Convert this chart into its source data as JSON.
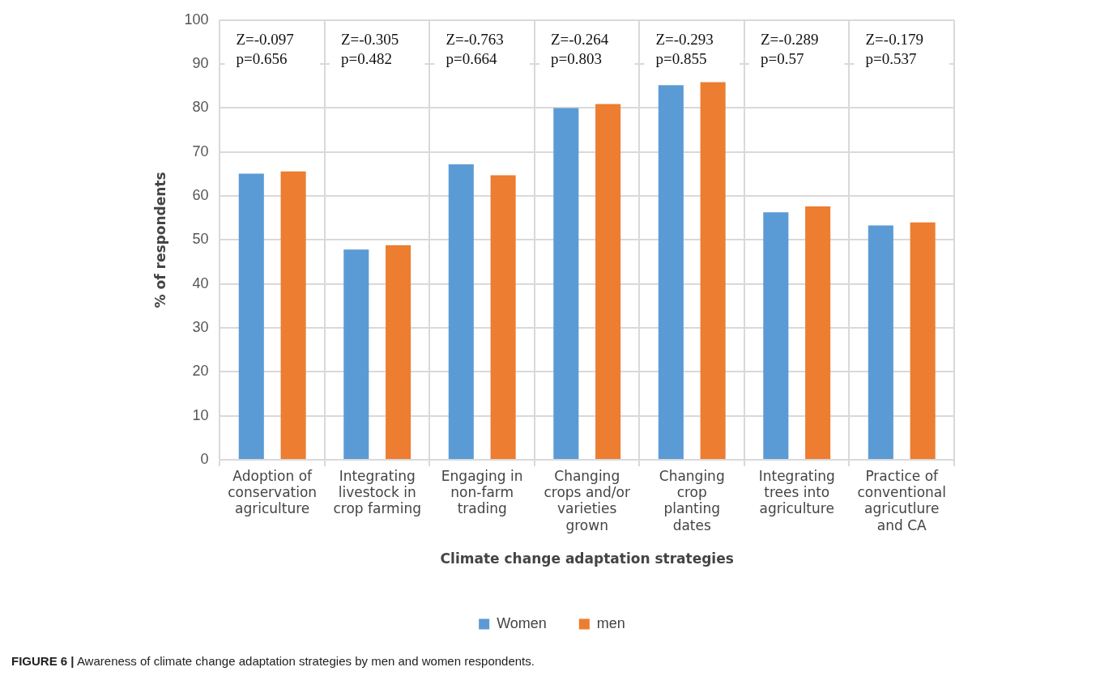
{
  "chart_data": {
    "type": "bar",
    "xlabel": "Climate change adaptation strategies",
    "ylabel": "% of respondents",
    "categories": [
      "Adoption of conservation agriculture",
      "Integrating livestock in crop farming",
      "Engaging in non-farm trading",
      "Changing crops and/or varieties grown",
      "Changing crop planting dates",
      "Integrating trees into agriculture",
      "Practice of conventional agricutlure and CA"
    ],
    "series": [
      {
        "name": "Women",
        "color": "#5b9bd5",
        "values": [
          65.1,
          47.8,
          67.2,
          80.0,
          85.2,
          56.3,
          53.3
        ]
      },
      {
        "name": "men",
        "color": "#ed7d31",
        "values": [
          65.6,
          48.8,
          64.7,
          80.9,
          85.9,
          57.6,
          54.0
        ]
      }
    ],
    "ylim": [
      0,
      100
    ],
    "yticks": [
      0,
      10,
      20,
      30,
      40,
      50,
      60,
      70,
      80,
      90,
      100
    ],
    "grid": true,
    "legend": "bottom",
    "annotations": [
      "Z=-0.097\np=0.656",
      "Z=-0.305\np=0.482",
      "Z=-0.763\np=0.664",
      "Z=-0.264\np=0.803",
      "Z=-0.293\np=0.855",
      "Z=-0.289\np=0.57",
      "Z=-0.179\np=0.537",
      "FIGURE 6 | Awareness of climate change adaptation strategies by men and women respondents."
    ]
  }
}
